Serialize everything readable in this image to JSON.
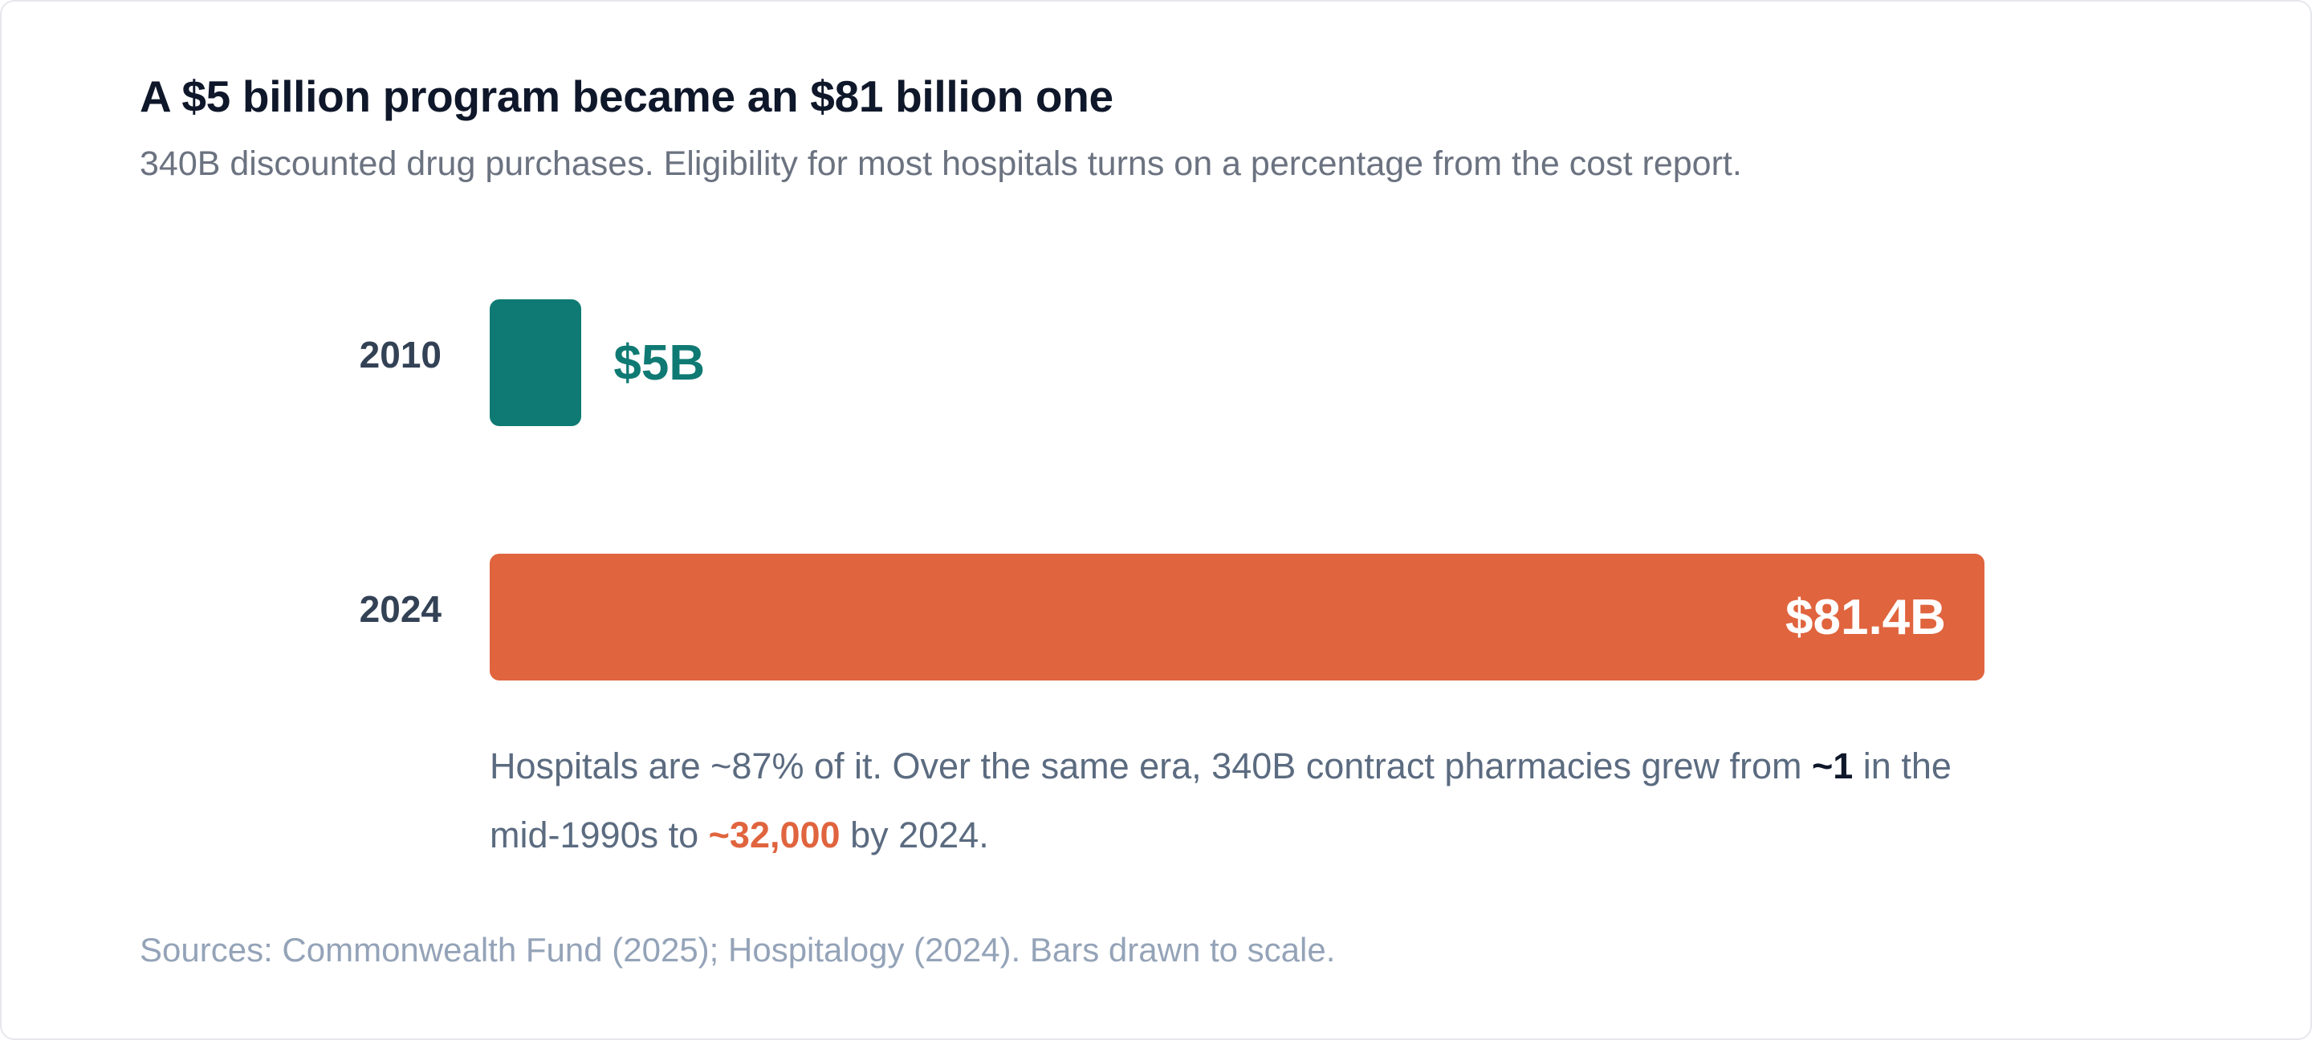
{
  "header": {
    "title": "A $5 billion program became an $81 billion one",
    "subtitle": "340B discounted drug purchases. Eligibility for most hospitals turns on a percentage from the cost report."
  },
  "chart_data": {
    "type": "bar",
    "orientation": "horizontal",
    "categories": [
      "2010",
      "2024"
    ],
    "values": [
      5,
      81.4
    ],
    "value_labels": [
      "$5B",
      "$81.4B"
    ],
    "colors": [
      "#0f7a73",
      "#e0643e"
    ],
    "unit": "billion USD",
    "xlim": [
      0,
      81.4
    ]
  },
  "note": {
    "part1": "Hospitals are ~87% of it. Over the same era, 340B contract pharmacies grew from ",
    "from_value": "~1",
    "part2": " in the mid-1990s to ",
    "to_value": "~32,000",
    "part3": " by 2024."
  },
  "source": "Sources: Commonwealth Fund (2025); Hospitalogy (2024). Bars drawn to scale."
}
